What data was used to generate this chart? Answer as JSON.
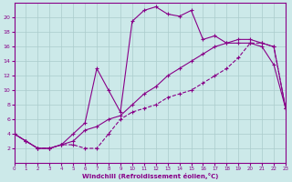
{
  "background_color": "#cce9e9",
  "grid_color": "#aacccc",
  "line_color": "#880088",
  "xlabel": "Windchill (Refroidissement éolien,°C)",
  "xlim": [
    0,
    23
  ],
  "ylim": [
    0,
    22
  ],
  "xticks": [
    0,
    1,
    2,
    3,
    4,
    5,
    6,
    7,
    8,
    9,
    10,
    11,
    12,
    13,
    14,
    15,
    16,
    17,
    18,
    19,
    20,
    21,
    22,
    23
  ],
  "yticks": [
    2,
    4,
    6,
    8,
    10,
    12,
    14,
    16,
    18,
    20
  ],
  "curve1_x": [
    0,
    1,
    2,
    3,
    4,
    5,
    6,
    7,
    8,
    9,
    10,
    11,
    12,
    13,
    14,
    15,
    16,
    17,
    18,
    19,
    20,
    21,
    22,
    23
  ],
  "curve1_y": [
    4,
    3,
    2,
    2,
    2.5,
    2.5,
    2,
    2,
    4,
    6,
    7,
    7.5,
    8,
    9,
    9.5,
    10,
    11,
    12,
    13,
    14.5,
    16.5,
    16.5,
    16,
    7.5
  ],
  "curve2_x": [
    0,
    1,
    2,
    3,
    4,
    5,
    6,
    7,
    8,
    9,
    10,
    11,
    12,
    13,
    14,
    15,
    16,
    17,
    18,
    19,
    20,
    21,
    22,
    23
  ],
  "curve2_y": [
    4,
    3,
    2,
    2,
    2.5,
    4,
    5.5,
    13,
    10,
    7,
    19.5,
    21,
    21.5,
    20.5,
    20.2,
    21,
    17,
    17.5,
    16.5,
    16.5,
    16.5,
    16,
    13.5,
    7.5
  ],
  "curve3_x": [
    0,
    1,
    2,
    3,
    4,
    5,
    6,
    7,
    8,
    9,
    10,
    11,
    12,
    13,
    14,
    15,
    16,
    17,
    18,
    19,
    20,
    21,
    22,
    23
  ],
  "curve3_y": [
    4,
    3,
    2,
    2,
    2.5,
    3,
    4.5,
    5,
    6,
    6.5,
    8,
    9.5,
    10.5,
    12,
    13,
    14,
    15,
    16,
    16.5,
    17,
    17,
    16.5,
    16,
    7.5
  ]
}
